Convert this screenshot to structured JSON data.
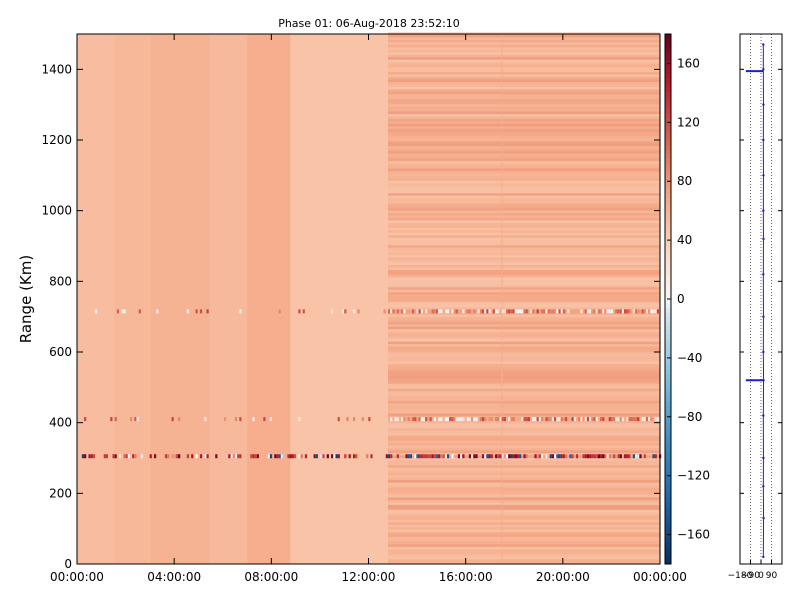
{
  "chart_data": [
    {
      "type": "heatmap",
      "title": "Phase 01: 06-Aug-2018 23:52:10",
      "xlabel": "",
      "ylabel": "Range (Km)",
      "x_ticks": [
        "00:00:00",
        "04:00:00",
        "08:00:00",
        "12:00:00",
        "16:00:00",
        "20:00:00",
        "00:00:00"
      ],
      "x_range_hours": [
        0,
        24
      ],
      "y_ticks": [
        0,
        200,
        400,
        600,
        800,
        1000,
        1200,
        1400
      ],
      "ylim": [
        0,
        1500
      ],
      "colorbar": {
        "ticks": [
          160,
          120,
          80,
          40,
          0,
          -40,
          -80,
          -120,
          -160
        ],
        "range": [
          -180,
          180
        ],
        "colormap": "RdBu_r"
      },
      "column_phase_profile": [
        {
          "hours": [
            0.0,
            1.5
          ],
          "value": 52
        },
        {
          "hours": [
            1.5,
            3.0
          ],
          "value": 56
        },
        {
          "hours": [
            3.0,
            5.5
          ],
          "value": 60
        },
        {
          "hours": [
            5.5,
            7.0
          ],
          "value": 55
        },
        {
          "hours": [
            7.0,
            8.8
          ],
          "value": 63
        },
        {
          "hours": [
            8.8,
            12.8
          ],
          "value": 48
        },
        {
          "hours": [
            12.8,
            17.5
          ],
          "value": 58
        },
        {
          "hours": [
            17.5,
            24.0
          ],
          "value": 60
        }
      ],
      "noisy_time_range_hours": [
        12.8,
        24
      ],
      "interference_ranges_km": [
        305,
        410,
        715
      ],
      "grid": false
    },
    {
      "type": "line",
      "xticks": [
        "−180",
        "−90",
        "0",
        "90"
      ],
      "xlim": [
        -180,
        180
      ],
      "ylim": [
        0,
        1500
      ],
      "series": [
        {
          "points": [
            {
              "x": 20,
              "y": 20
            },
            {
              "x": 22,
              "y": 130
            },
            {
              "x": 20,
              "y": 220
            },
            {
              "x": 21,
              "y": 300
            },
            {
              "x": 20,
              "y": 420
            },
            {
              "x": 22,
              "y": 520
            },
            {
              "x": 20,
              "y": 600
            },
            {
              "x": 21,
              "y": 700
            },
            {
              "x": 20,
              "y": 820
            },
            {
              "x": 21,
              "y": 920
            },
            {
              "x": 20,
              "y": 1000
            },
            {
              "x": 21,
              "y": 1100
            },
            {
              "x": 20,
              "y": 1200
            },
            {
              "x": 21,
              "y": 1300
            },
            {
              "x": 20,
              "y": 1400
            },
            {
              "x": 20,
              "y": 1470
            }
          ],
          "color": "#1f1fd0"
        }
      ],
      "spikes": [
        {
          "y": 1395,
          "x_from": -130,
          "x_to": 20
        },
        {
          "y": 520,
          "x_from": -130,
          "x_to": 20
        }
      ],
      "vertical_gridlines_x": [
        -180,
        -90,
        0,
        90
      ],
      "grid": "vertical dotted"
    }
  ]
}
